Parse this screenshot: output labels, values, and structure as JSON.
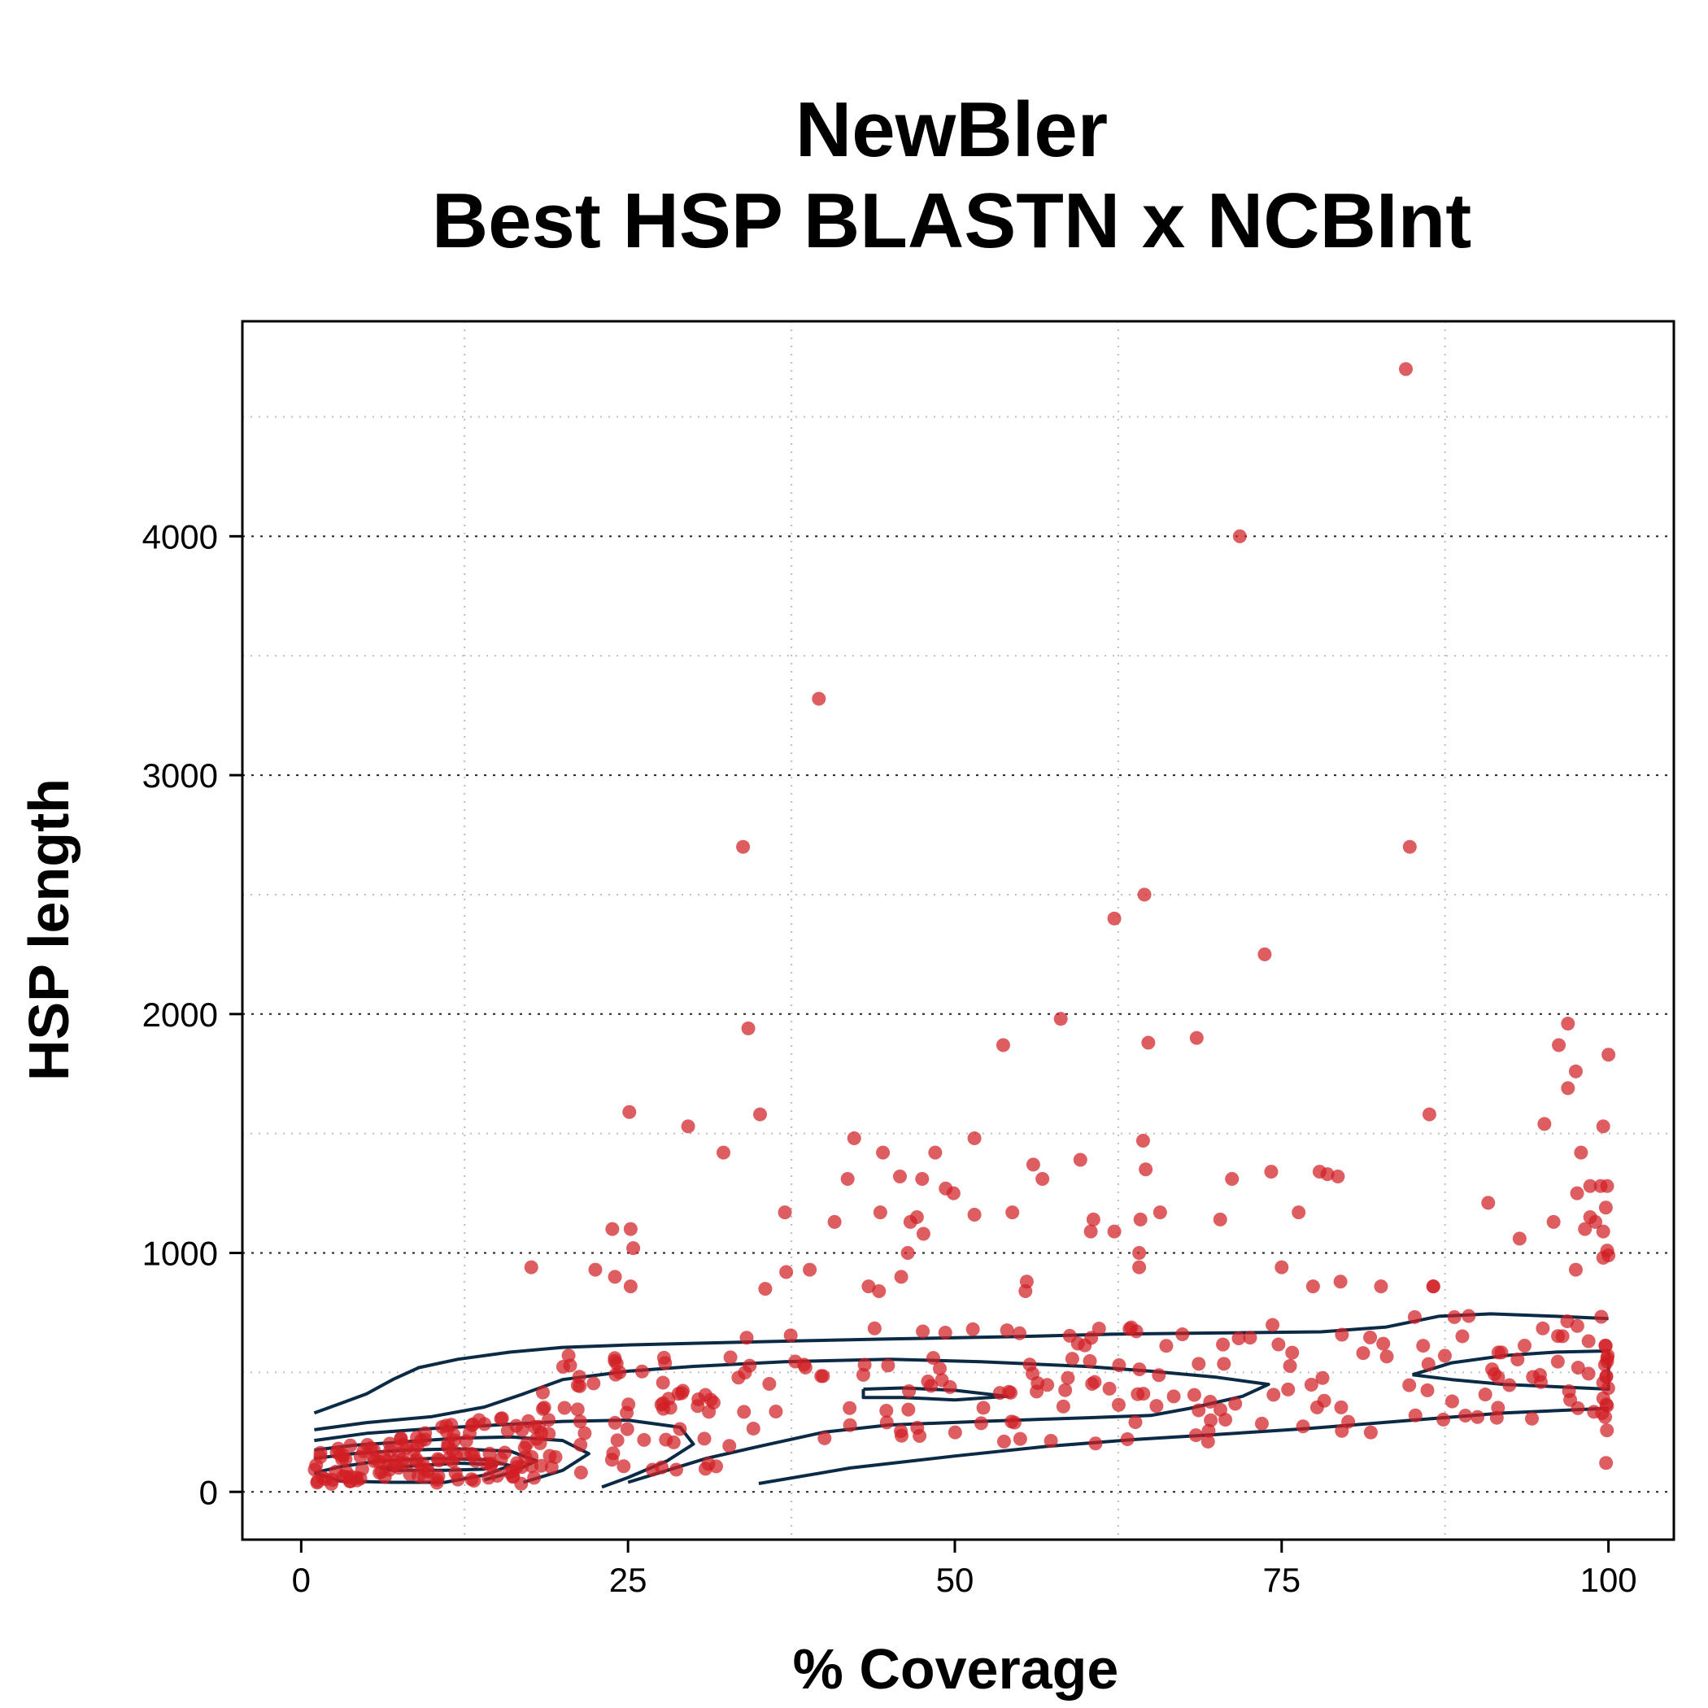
{
  "chart_data": {
    "type": "scatter",
    "title_lines": [
      "NewBler",
      "Best HSP BLASTN x NCBInt"
    ],
    "xlabel": "% Coverage",
    "ylabel": "HSP length",
    "xlim": [
      -4.5,
      105
    ],
    "ylim": [
      -200,
      4900
    ],
    "x_ticks": [
      0,
      25,
      50,
      75,
      100
    ],
    "y_ticks": [
      0,
      1000,
      2000,
      3000,
      4000
    ],
    "minor_grid_x": [
      12.5,
      37.5,
      62.5,
      87.5
    ],
    "minor_grid_y": [
      500,
      1500,
      2500,
      3500,
      4500
    ],
    "grid": true,
    "point_color": "#d11f24",
    "contour_color": "#0b2a45",
    "points": [
      [
        84.5,
        4700
      ],
      [
        71.8,
        4000
      ],
      [
        39.6,
        3320
      ],
      [
        33.8,
        2700
      ],
      [
        84.8,
        2700
      ],
      [
        64.5,
        2500
      ],
      [
        62.2,
        2400
      ],
      [
        73.7,
        2250
      ],
      [
        58.1,
        1980
      ],
      [
        96.9,
        1960
      ],
      [
        34.2,
        1940
      ],
      [
        68.5,
        1900
      ],
      [
        64.8,
        1880
      ],
      [
        53.7,
        1870
      ],
      [
        96.2,
        1870
      ],
      [
        100,
        1830
      ],
      [
        97.5,
        1760
      ],
      [
        96.9,
        1690
      ],
      [
        25.1,
        1590
      ],
      [
        35.1,
        1580
      ],
      [
        86.3,
        1580
      ],
      [
        29.6,
        1530
      ],
      [
        95.1,
        1540
      ],
      [
        99.6,
        1530
      ],
      [
        42.3,
        1480
      ],
      [
        51.5,
        1480
      ],
      [
        64.4,
        1470
      ],
      [
        32.3,
        1420
      ],
      [
        44.5,
        1420
      ],
      [
        48.5,
        1420
      ],
      [
        97.9,
        1420
      ],
      [
        56,
        1370
      ],
      [
        59.6,
        1390
      ],
      [
        74.2,
        1340
      ],
      [
        77.9,
        1340
      ],
      [
        78.5,
        1330
      ],
      [
        79.3,
        1320
      ],
      [
        41.8,
        1310
      ],
      [
        45.8,
        1320
      ],
      [
        47.5,
        1310
      ],
      [
        56.7,
        1310
      ],
      [
        71.2,
        1310
      ],
      [
        64.6,
        1350
      ],
      [
        98.6,
        1280
      ],
      [
        99.4,
        1280
      ],
      [
        99.9,
        1280
      ],
      [
        49.3,
        1270
      ],
      [
        49.9,
        1250
      ],
      [
        97.6,
        1250
      ],
      [
        90.8,
        1210
      ],
      [
        99.8,
        1190
      ],
      [
        44.3,
        1170
      ],
      [
        51.5,
        1160
      ],
      [
        54.4,
        1170
      ],
      [
        65.7,
        1170
      ],
      [
        76.3,
        1170
      ],
      [
        37,
        1170
      ],
      [
        98.6,
        1150
      ],
      [
        40.8,
        1130
      ],
      [
        46.6,
        1130
      ],
      [
        47.1,
        1150
      ],
      [
        60.6,
        1140
      ],
      [
        64.2,
        1140
      ],
      [
        70.3,
        1140
      ],
      [
        95.8,
        1130
      ],
      [
        99,
        1130
      ],
      [
        23.8,
        1100
      ],
      [
        25.2,
        1100
      ],
      [
        47.6,
        1080
      ],
      [
        60.4,
        1090
      ],
      [
        62.2,
        1090
      ],
      [
        98.2,
        1100
      ],
      [
        99.6,
        1090
      ],
      [
        93.2,
        1060
      ],
      [
        25.4,
        1020
      ],
      [
        46.4,
        1000
      ],
      [
        64.1,
        1000
      ],
      [
        99.9,
        1010
      ],
      [
        100,
        990
      ],
      [
        99.6,
        980
      ],
      [
        22.5,
        930
      ],
      [
        24,
        900
      ],
      [
        38.9,
        930
      ],
      [
        37.1,
        920
      ],
      [
        64.1,
        940
      ],
      [
        75,
        940
      ],
      [
        97.5,
        930
      ],
      [
        17.6,
        940
      ],
      [
        45.9,
        900
      ],
      [
        55.5,
        880
      ],
      [
        79.5,
        880
      ],
      [
        86.6,
        860
      ],
      [
        25.2,
        860
      ],
      [
        35.5,
        850
      ],
      [
        43.4,
        860
      ],
      [
        44.2,
        840
      ],
      [
        55.4,
        840
      ],
      [
        77.4,
        860
      ],
      [
        82.6,
        860
      ],
      [
        86.6,
        860
      ]
    ]
  }
}
